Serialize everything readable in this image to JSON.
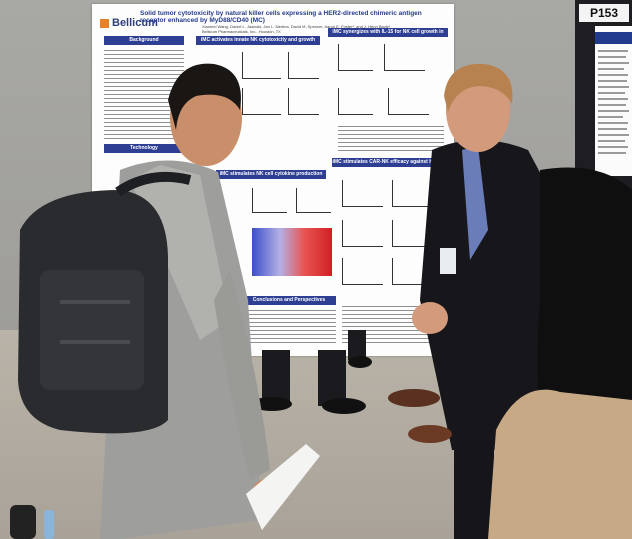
{
  "poster": {
    "title": "Solid tumor cytotoxicity by natural killer cells expressing a HER2-directed chimeric antigen receptor enhanced by MyD88/CD40 (MC)",
    "authors": "Xiaomei Wang, Daniel L. Jasinski, Jan L. Medina, David M. Spencer, Aaron E. Foster*, and J. Henri Bayle*",
    "affiliation": "Bellicum Pharmaceuticals, Inc., Houston, TX",
    "logo": "Bellicum",
    "sections": [
      "Background",
      "iMC activates innate NK cytotoxicity and growth",
      "iMC synergizes with IL-15 for NK cell growth in vivo",
      "iMC stimulates NK cell cytokine production",
      "iMC stimulates CAR-NK efficacy against HER2+ tumors",
      "Technology",
      "Conclusions and Perspectives"
    ]
  },
  "board_tag": "P153",
  "colors": {
    "poster_header": "#2e3f93",
    "logo_mark": "#e8822a",
    "board": "#1d1d22"
  }
}
